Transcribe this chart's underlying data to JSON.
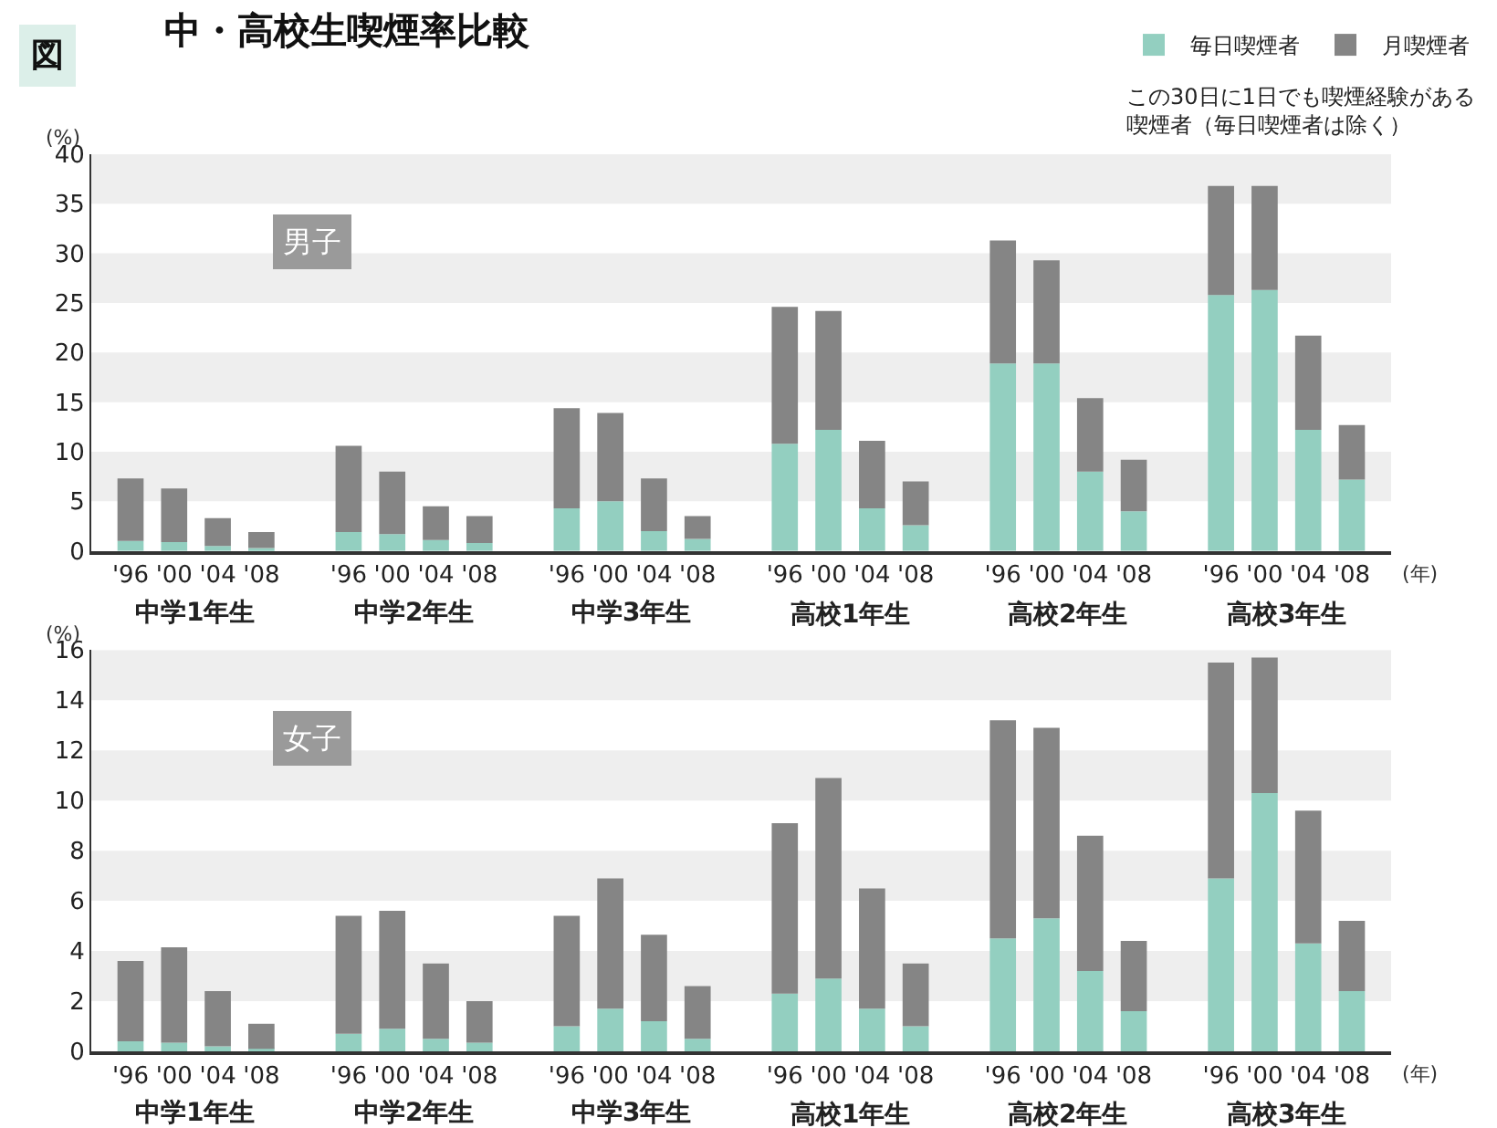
{
  "chart_data": [
    {
      "type": "bar",
      "title": "中・高校生喫煙率比較",
      "ylabel": "(%)",
      "stacked": true,
      "legend": "top right",
      "bands": [
        {
          "axis": "y",
          "from": 5,
          "to": 10,
          "color": "#eeeeee"
        },
        {
          "axis": "y",
          "from": 15,
          "to": 20,
          "color": "#eeeeee"
        },
        {
          "axis": "y",
          "from": 25,
          "to": 30,
          "color": "#eeeeee"
        },
        {
          "axis": "y",
          "from": 35,
          "to": 40,
          "color": "#eeeeee"
        }
      ],
      "categories": [
        "'96",
        "'00",
        "'04",
        "'08",
        "'96",
        "'00",
        "'04",
        "'08",
        "'96",
        "'00",
        "'04",
        "'08",
        "'96",
        "'00",
        "'04",
        "'08",
        "'96",
        "'00",
        "'04",
        "'08",
        "'96",
        "'00",
        "'04",
        "'08"
      ],
      "ylim": [
        0,
        40
      ],
      "yticks": [
        0,
        5,
        10,
        15,
        20,
        25,
        30,
        35,
        40
      ],
      "series": [
        {
          "name": "毎日喫煙者",
          "color": "#93cfc0",
          "values": [
            1.0,
            0.9,
            0.5,
            0.3,
            1.9,
            1.7,
            1.1,
            0.8,
            4.3,
            5.0,
            2.0,
            1.2,
            10.8,
            12.2,
            4.3,
            2.6,
            18.9,
            18.9,
            8.0,
            4.0,
            25.8,
            26.3,
            12.2,
            7.2
          ]
        },
        {
          "name": "月喫煙者",
          "color": "#858585",
          "values": [
            6.3,
            5.4,
            2.8,
            1.6,
            8.7,
            6.3,
            3.4,
            2.7,
            10.1,
            8.9,
            5.3,
            2.3,
            13.8,
            12.0,
            6.8,
            4.4,
            12.4,
            10.4,
            7.4,
            5.2,
            11.0,
            10.5,
            9.5,
            5.5
          ]
        }
      ],
      "annotations": [
        "図",
        "男子",
        "中学1年生",
        "中学2年生",
        "中学3年生",
        "高校1年生",
        "高校2年生",
        "高校3年生",
        "(年)",
        "この30日に1日でも喫煙経験がある喫煙者（毎日喫煙者は除く）"
      ]
    },
    {
      "type": "bar",
      "ylabel": "(%)",
      "stacked": true,
      "bands": [
        {
          "axis": "y",
          "from": 2,
          "to": 4,
          "color": "#eeeeee"
        },
        {
          "axis": "y",
          "from": 6,
          "to": 8,
          "color": "#eeeeee"
        },
        {
          "axis": "y",
          "from": 10,
          "to": 12,
          "color": "#eeeeee"
        },
        {
          "axis": "y",
          "from": 14,
          "to": 16,
          "color": "#eeeeee"
        }
      ],
      "categories": [
        "'96",
        "'00",
        "'04",
        "'08",
        "'96",
        "'00",
        "'04",
        "'08",
        "'96",
        "'00",
        "'04",
        "'08",
        "'96",
        "'00",
        "'04",
        "'08",
        "'96",
        "'00",
        "'04",
        "'08",
        "'96",
        "'00",
        "'04",
        "'08"
      ],
      "ylim": [
        0,
        16
      ],
      "yticks": [
        0,
        2,
        4,
        6,
        8,
        10,
        12,
        14,
        16
      ],
      "series": [
        {
          "color": "#93cfc0",
          "values": [
            0.4,
            0.35,
            0.2,
            0.1,
            0.7,
            0.9,
            0.5,
            0.35,
            1.0,
            1.7,
            1.2,
            0.5,
            2.3,
            2.9,
            1.7,
            1.0,
            4.5,
            5.3,
            3.2,
            1.6,
            6.9,
            10.3,
            4.3,
            2.4
          ]
        },
        {
          "color": "#858585",
          "values": [
            3.2,
            3.8,
            2.2,
            1.0,
            4.7,
            4.7,
            3.0,
            1.65,
            4.4,
            5.2,
            3.45,
            2.1,
            6.8,
            8.0,
            4.8,
            2.5,
            8.7,
            7.6,
            5.4,
            2.8,
            8.6,
            5.4,
            5.3,
            2.8
          ]
        }
      ],
      "annotations": [
        "女子",
        "中学1年生",
        "中学2年生",
        "中学3年生",
        "高校1年生",
        "高校2年生",
        "高校3年生",
        "(年)"
      ]
    }
  ]
}
